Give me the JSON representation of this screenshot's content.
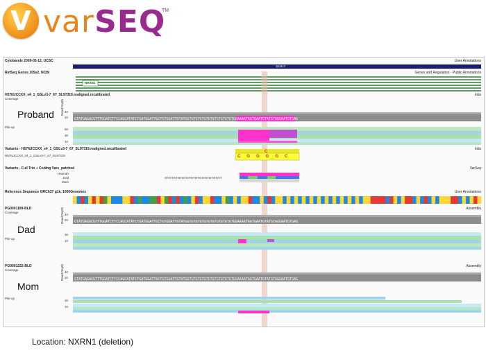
{
  "brand": {
    "logo_letter": "V",
    "name_part1": "var",
    "name_part2": "SEQ",
    "tm": "TM",
    "color_orange": "#e8841a",
    "color_purple": "#9a2b8e"
  },
  "tracks": {
    "cytobands": {
      "title": "Cytobands 2009-05-12, UCSC",
      "right": "User Annotations",
      "band": "2p16.3"
    },
    "refseq": {
      "title": "RefSeq Genes 105v2, NCBI",
      "right": "Genes and Regulation - Public Annotations",
      "gene": "NRXN1"
    },
    "proband_bam": {
      "title": "H57NJCCXX_s4_1_GSLv3-7_67_SL97319.realigned.recalibrated",
      "right": "kids",
      "sub": "Coverage",
      "pileup": "Pile-up",
      "ylabel": "Read Depth",
      "tick_high": "40",
      "tick_low": "20",
      "ticks_pile": [
        "50",
        "30",
        "10"
      ]
    },
    "variants_proband": {
      "title": "Variants - H57NJCCXX_s4_1_GSLv3-7_67_SL97319.realigned.recalibrated",
      "right": "kids",
      "sample": "H57NJCCXX_s4_1_GSLv3-7_67_SL97319",
      "alt": "C",
      "ref": "CGGGGC"
    },
    "variants_trio": {
      "title": "Variants - Full Trio + Coding Vars_patched",
      "right": "VarSeq",
      "samples": [
        "Hannah",
        "Dad",
        "Mom"
      ],
      "dad_seq": "GTGTGTGTGTGTGTGTGT/GTGTGTGT"
    },
    "reference": {
      "title": "Reference Sequence GRCh37 g1k, 1000Genomes",
      "right": "User Annotations"
    },
    "dad_bam": {
      "title": "PG0001189-BLD",
      "right": "Assembly",
      "sub": "Coverage",
      "pileup": "Pile-up",
      "ylabel": "Read Depth",
      "ticks_cov": [
        "40",
        "20"
      ],
      "ticks_pile": [
        "30",
        "10"
      ]
    },
    "mom_bam": {
      "title": "PG0001222-BLD",
      "right": "Assembly",
      "sub": "Coverage",
      "pileup": "Pile-up",
      "ylabel": "Read Depth",
      "ticks_cov": [
        "40",
        "20"
      ],
      "ticks_pile": [
        "30",
        "10"
      ]
    }
  },
  "labels": {
    "proband": "Proband",
    "dad": "Dad",
    "mom": "Mom"
  },
  "sequence": "GTATGAGACGTTTGGATCTTCCAGCATATCTGATGGATTGCTGTGGATTGTATGGTGTGTGTGTGTGTGTGTGTGTGGAAAATAGTGAATGTATGTGGGAATGTGAG",
  "caption": "Location: NXRN1 (deletion)"
}
